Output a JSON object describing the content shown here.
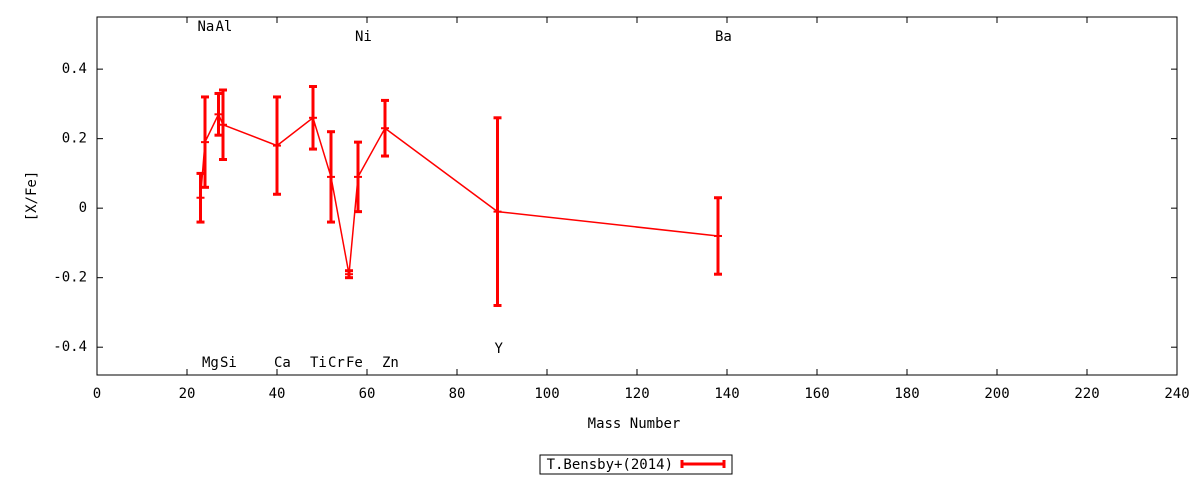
{
  "chart_data": {
    "type": "errorline",
    "xlabel": "Mass Number",
    "ylabel": "[X/Fe]",
    "xlim": [
      0,
      240
    ],
    "ylim": [
      -0.48,
      0.55
    ],
    "xticks": [
      0,
      20,
      40,
      60,
      80,
      100,
      120,
      140,
      160,
      180,
      200,
      220,
      240
    ],
    "yticks": [
      -0.4,
      -0.2,
      0,
      0.2,
      0.4
    ],
    "grid": false,
    "legend": "bottom",
    "point_labels": [
      "Na",
      "Mg",
      "Al",
      "Si",
      "Ca",
      "Ti",
      "Cr",
      "Fe",
      "Ni",
      "Zn",
      "Y",
      "Ba"
    ],
    "series": [
      {
        "name": "T.Bensby+(2014)",
        "color": "#ff0000",
        "x": [
          23,
          24,
          27,
          28,
          40,
          48,
          52,
          56,
          58,
          64,
          89,
          138
        ],
        "values": [
          0.03,
          0.19,
          0.27,
          0.24,
          0.18,
          0.26,
          0.09,
          -0.19,
          0.09,
          0.23,
          -0.01,
          -0.08
        ],
        "errors": [
          0.07,
          0.13,
          0.06,
          0.1,
          0.14,
          0.09,
          0.13,
          0.01,
          0.1,
          0.08,
          0.27,
          0.11
        ]
      }
    ]
  }
}
